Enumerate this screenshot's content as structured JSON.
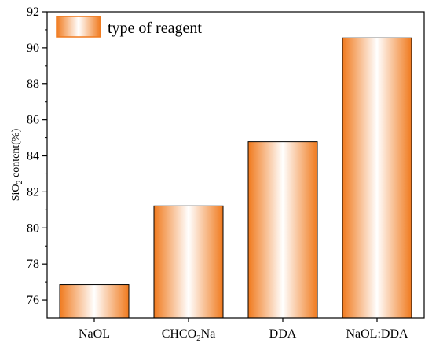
{
  "chart_data": {
    "type": "bar",
    "categories": [
      "NaOL",
      "CHCO2Na",
      "DDA",
      "NaOL:DDA"
    ],
    "values": [
      76.85,
      81.22,
      84.78,
      90.55
    ],
    "ylabel": "SiO2 content(%)",
    "ylim": [
      75,
      92
    ],
    "yticks": [
      76,
      78,
      80,
      82,
      84,
      86,
      88,
      90,
      92
    ],
    "grid": false,
    "legend": {
      "entries": [
        "type of reagent"
      ],
      "placement": "top-left"
    },
    "colors": {
      "bar_edge": "#f07a1e",
      "bar_center": "#ffffff",
      "frame": "#000000"
    }
  }
}
